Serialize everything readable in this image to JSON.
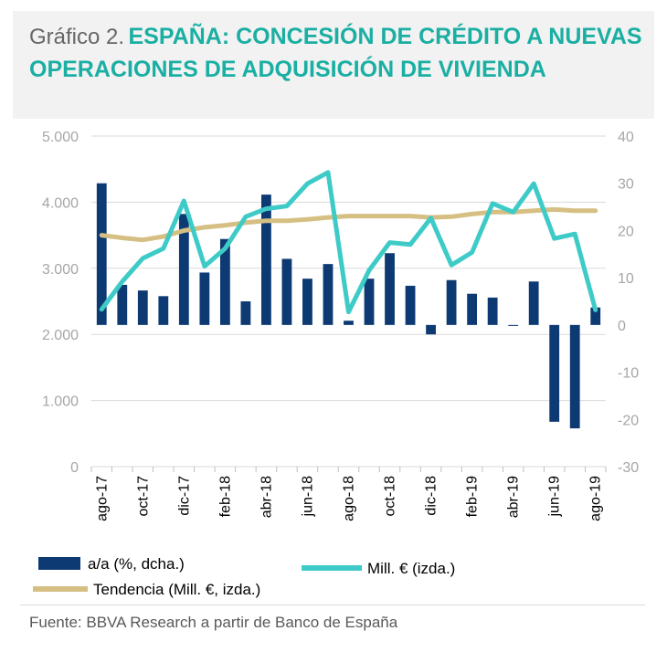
{
  "title": {
    "prefix": "Gráfico 2.",
    "main": "ESPAÑA: CONCESIÓN DE CRÉDITO A NUEVAS OPERACIONES DE ADQUISICIÓN DE VIVIENDA"
  },
  "source": "Fuente: BBVA Research a partir de Banco de España",
  "colors": {
    "bars": "#0d3a73",
    "line": "#3ecbc8",
    "trend": "#d6bf83",
    "title_accent": "#1aafa3",
    "grid": "#d9d9d9"
  },
  "chart_data": {
    "type": "bar",
    "categories": [
      "ago-17",
      "sep-17",
      "oct-17",
      "nov-17",
      "dic-17",
      "ene-18",
      "feb-18",
      "mar-18",
      "abr-18",
      "may-18",
      "jun-18",
      "jul-18",
      "ago-18",
      "sep-18",
      "oct-18",
      "nov-18",
      "dic-18",
      "ene-19",
      "feb-19",
      "mar-19",
      "abr-19",
      "may-19",
      "jun-19",
      "jul-19",
      "ago-19"
    ],
    "x_tick_labels": [
      "ago-17",
      "oct-17",
      "dic-17",
      "feb-18",
      "abr-18",
      "jun-18",
      "ago-18",
      "oct-18",
      "dic-18",
      "feb-19",
      "abr-19",
      "jun-19",
      "ago-19"
    ],
    "left_axis": {
      "ylim": [
        0,
        5000
      ],
      "ticks": [
        "0",
        "1.000",
        "2.000",
        "3.000",
        "4.000",
        "5.000"
      ]
    },
    "right_axis": {
      "ylim": [
        -30,
        40
      ],
      "ticks": [
        "-30",
        "-20",
        "-10",
        "0",
        "10",
        "20",
        "30",
        "40"
      ]
    },
    "series": [
      {
        "name": "a/a (%, dcha.)",
        "type": "bar",
        "axis": "right",
        "values": [
          30,
          8.5,
          7.3,
          6.1,
          23.5,
          11.1,
          18.2,
          5,
          27.6,
          14,
          9.8,
          12.9,
          0.9,
          9.8,
          15.2,
          8.3,
          -2,
          9.5,
          6.6,
          5.8,
          -0.2,
          9.2,
          -20.5,
          -21.9,
          3.7
        ]
      },
      {
        "name": "Mill. € (izda.)",
        "type": "line",
        "axis": "left",
        "values": [
          2380,
          2800,
          3150,
          3300,
          4020,
          3030,
          3300,
          3780,
          3900,
          3940,
          4280,
          4450,
          2340,
          2970,
          3390,
          3360,
          3760,
          3050,
          3240,
          3980,
          3850,
          4280,
          3450,
          3520,
          2370
        ]
      },
      {
        "name": "Tendencia (Mill. €, izda.)",
        "type": "line",
        "axis": "left",
        "values": [
          3500,
          3460,
          3430,
          3480,
          3570,
          3620,
          3650,
          3690,
          3720,
          3720,
          3740,
          3770,
          3790,
          3790,
          3790,
          3790,
          3770,
          3780,
          3820,
          3850,
          3850,
          3870,
          3890,
          3870,
          3870
        ]
      }
    ],
    "legend_placement": "bottom",
    "grid": true
  }
}
